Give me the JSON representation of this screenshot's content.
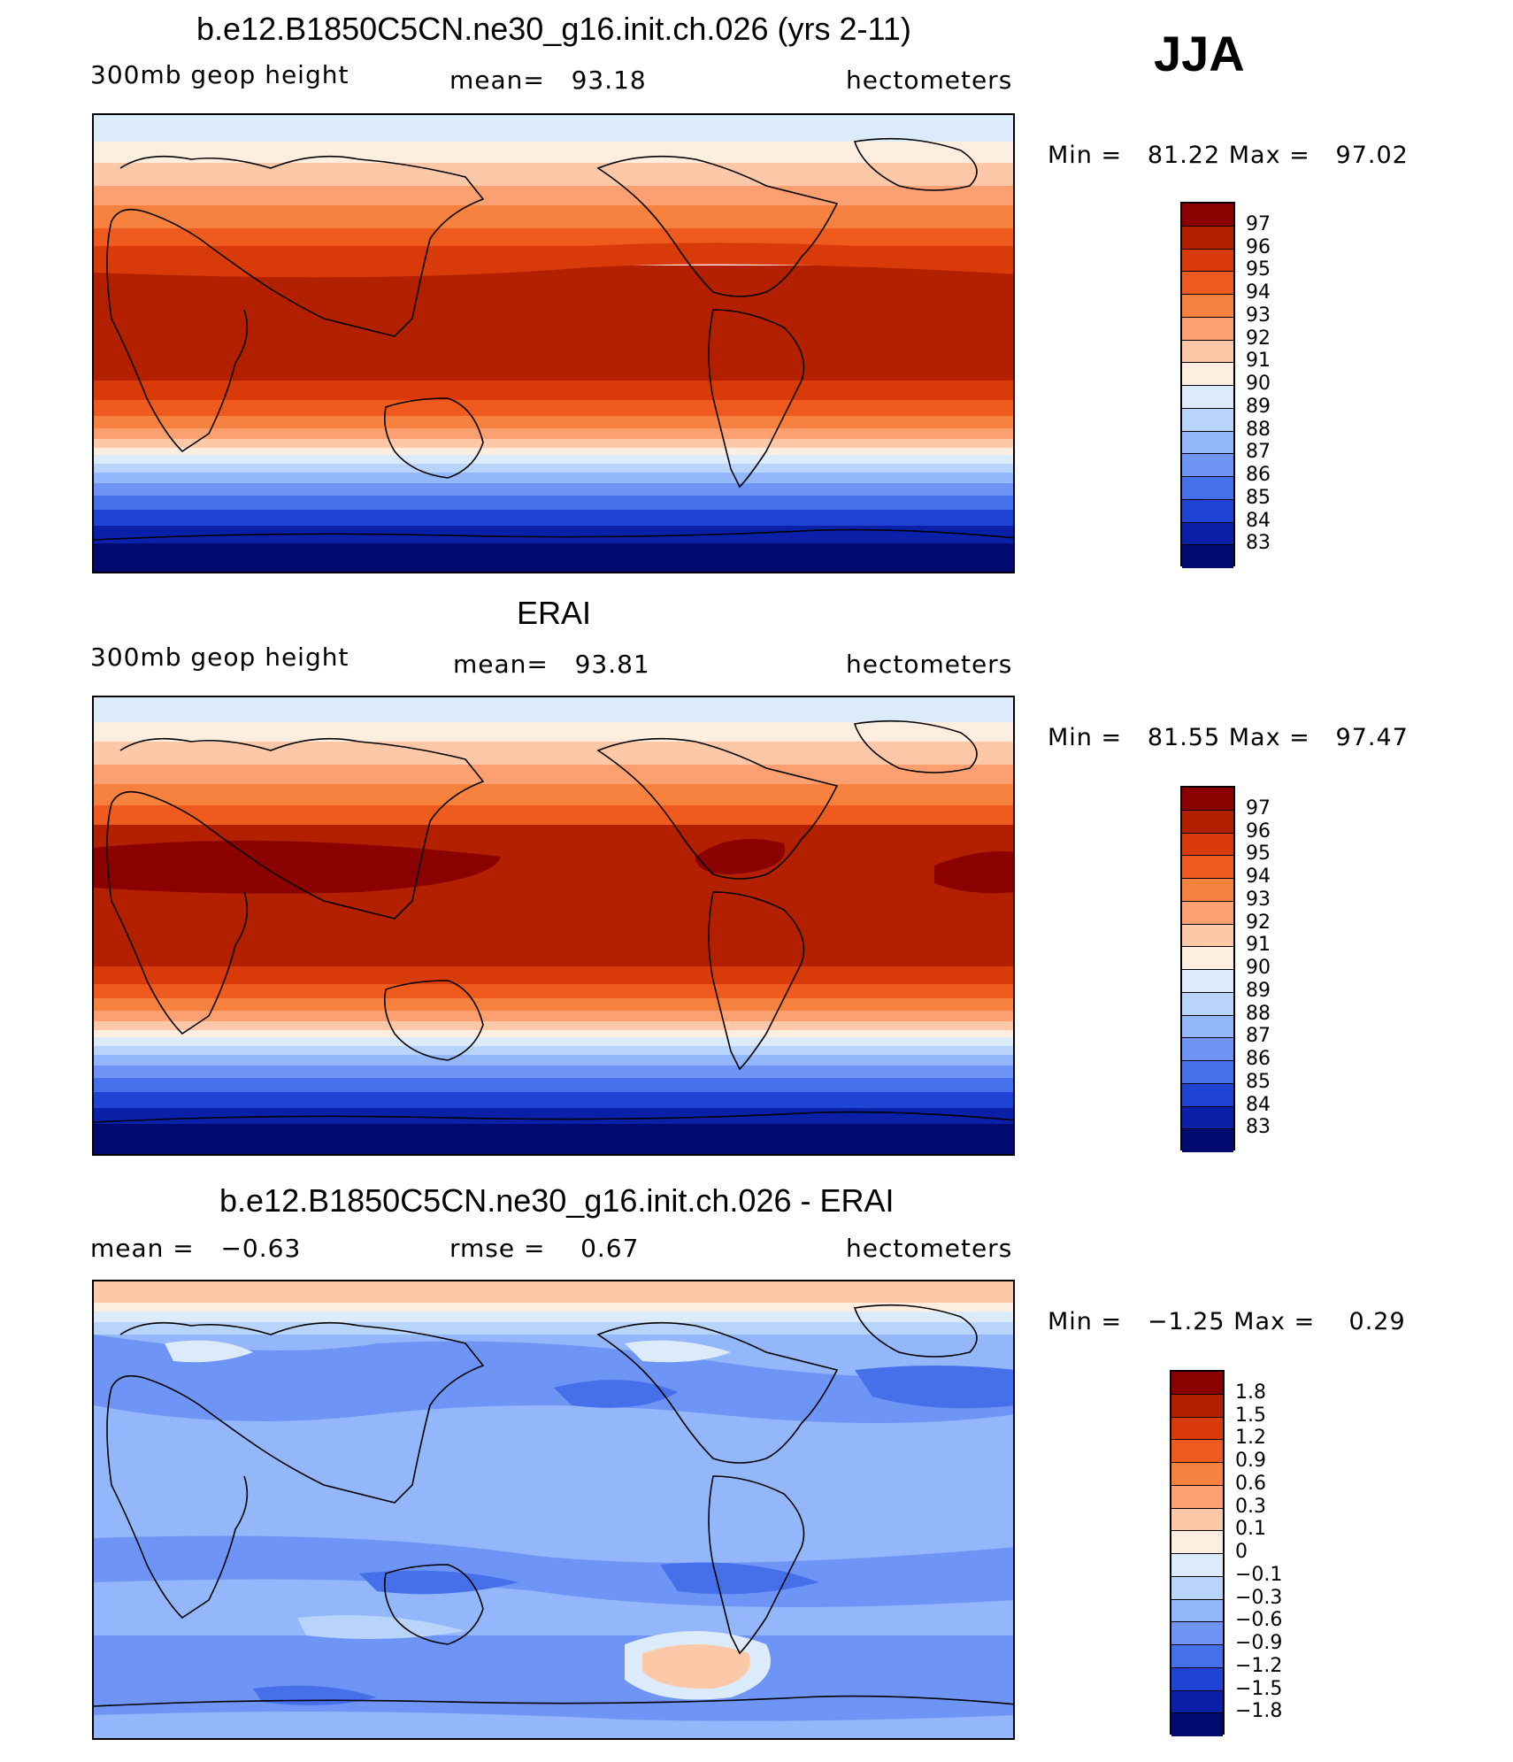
{
  "season": "JJA",
  "units": "hectometers",
  "variable": "300mb geop height",
  "panels": [
    {
      "title": "b.e12.B1850C5CN.ne30_g16.init.ch.026 (yrs 2-11)",
      "left_label": "300mb geop height",
      "stat": "mean=   93.18",
      "units": "hectometers",
      "minmax": "Min =   81.22 Max =   97.02",
      "colorbar_labels": [
        "97",
        "96",
        "95",
        "94",
        "93",
        "92",
        "91",
        "90",
        "89",
        "88",
        "87",
        "86",
        "85",
        "84",
        "83"
      ]
    },
    {
      "title": "ERAI",
      "left_label": "300mb geop height",
      "stat": "mean=   93.81",
      "units": "hectometers",
      "minmax": "Min =   81.55 Max =   97.47",
      "colorbar_labels": [
        "97",
        "96",
        "95",
        "94",
        "93",
        "92",
        "91",
        "90",
        "89",
        "88",
        "87",
        "86",
        "85",
        "84",
        "83"
      ]
    },
    {
      "title": "b.e12.B1850C5CN.ne30_g16.init.ch.026 - ERAI",
      "left_label": "mean =   −0.63",
      "stat": "rmse =    0.67",
      "units": "hectometers",
      "minmax": "Min =   −1.25 Max =    0.29",
      "colorbar_labels": [
        "1.8",
        "1.5",
        "1.2",
        "0.9",
        "0.6",
        "0.3",
        "0.1",
        "0",
        "−0.1",
        "−0.3",
        "−0.6",
        "−0.9",
        "−1.2",
        "−1.5",
        "−1.8"
      ]
    }
  ],
  "colors": {
    "scale_top_to_bottom": [
      "#8b0000",
      "#b22000",
      "#d83a0a",
      "#ef5a1e",
      "#f7823f",
      "#fca071",
      "#fdc8a8",
      "#feeedf",
      "#dcebfa",
      "#b9d4fb",
      "#93b7fa",
      "#6e95f6",
      "#4670ea",
      "#1f44d4",
      "#0a20a8",
      "#020a70"
    ],
    "coast": "#000000"
  }
}
